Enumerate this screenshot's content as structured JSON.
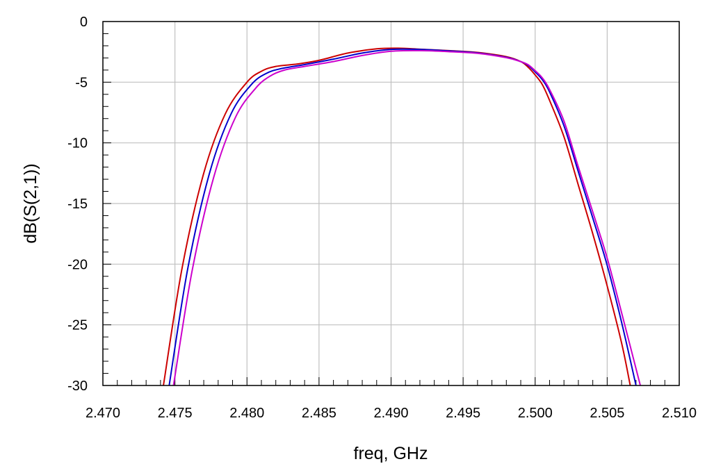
{
  "chart_data": {
    "type": "line",
    "xlabel": "freq, GHz",
    "ylabel": "dB(S(2,1))",
    "xlim": [
      2.47,
      2.51
    ],
    "ylim": [
      -30,
      0
    ],
    "grid": true,
    "x_ticks": [
      "2.470",
      "2.475",
      "2.480",
      "2.485",
      "2.490",
      "2.495",
      "2.500",
      "2.505",
      "2.510"
    ],
    "x_tick_values": [
      2.47,
      2.475,
      2.48,
      2.485,
      2.49,
      2.495,
      2.5,
      2.505,
      2.51
    ],
    "y_ticks": [
      "0",
      "-5",
      "-10",
      "-15",
      "-20",
      "-25",
      "-30"
    ],
    "y_tick_values": [
      0,
      -5,
      -10,
      -15,
      -20,
      -25,
      -30
    ],
    "x_minor_step": 0.001,
    "y_minor_step": 1,
    "series": [
      {
        "color": "#cc0000",
        "x": [
          2.4742,
          2.4755,
          2.477,
          2.4785,
          2.48,
          2.481,
          2.482,
          2.4835,
          2.485,
          2.487,
          2.489,
          2.4905,
          2.492,
          2.494,
          2.496,
          2.498,
          2.499,
          2.4995,
          2.5,
          2.5005,
          2.501,
          2.502,
          2.503,
          2.504,
          2.505,
          2.506,
          2.5066
        ],
        "y": [
          -30,
          -20.3,
          -12.5,
          -7.6,
          -5.0,
          -4.1,
          -3.7,
          -3.5,
          -3.2,
          -2.6,
          -2.25,
          -2.2,
          -2.28,
          -2.4,
          -2.55,
          -2.9,
          -3.3,
          -3.75,
          -4.4,
          -5.2,
          -6.5,
          -9.5,
          -13.5,
          -17.5,
          -21.8,
          -26.5,
          -30
        ]
      },
      {
        "color": "#0000cc",
        "x": [
          2.4746,
          2.4759,
          2.4774,
          2.4789,
          2.4803,
          2.4813,
          2.4823,
          2.484,
          2.486,
          2.488,
          2.49,
          2.492,
          2.494,
          2.496,
          2.498,
          2.499,
          2.4995,
          2.5,
          2.5005,
          2.501,
          2.502,
          2.503,
          2.504,
          2.505,
          2.506,
          2.507
        ],
        "y": [
          -30,
          -20.3,
          -12.5,
          -7.6,
          -5.2,
          -4.3,
          -3.9,
          -3.55,
          -3.1,
          -2.6,
          -2.3,
          -2.3,
          -2.42,
          -2.58,
          -2.95,
          -3.3,
          -3.6,
          -4.15,
          -4.8,
          -5.8,
          -8.6,
          -12.4,
          -16.2,
          -20.1,
          -24.8,
          -30
        ]
      },
      {
        "color": "#cc00cc",
        "x": [
          2.4749,
          2.4762,
          2.4777,
          2.4792,
          2.4806,
          2.4816,
          2.4826,
          2.484,
          2.486,
          2.488,
          2.49,
          2.492,
          2.494,
          2.496,
          2.498,
          2.499,
          2.4995,
          2.5,
          2.5005,
          2.501,
          2.502,
          2.503,
          2.504,
          2.505,
          2.506,
          2.5073
        ],
        "y": [
          -30,
          -20.5,
          -12.8,
          -7.9,
          -5.5,
          -4.5,
          -4.0,
          -3.7,
          -3.3,
          -2.8,
          -2.45,
          -2.4,
          -2.48,
          -2.62,
          -2.98,
          -3.3,
          -3.55,
          -4.05,
          -4.65,
          -5.6,
          -8.2,
          -12.0,
          -15.7,
          -19.5,
          -24.0,
          -30
        ]
      }
    ]
  }
}
